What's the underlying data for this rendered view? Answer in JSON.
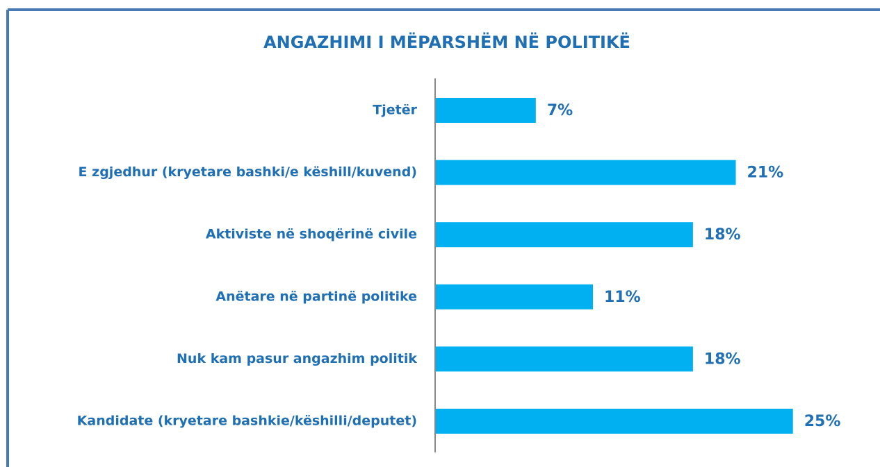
{
  "chart_data": {
    "type": "bar",
    "orientation": "horizontal",
    "title": "ANGAZHIMI I MËPARSHËM NË POLITIKË",
    "categories": [
      "Tjetër",
      "E zgjedhur (kryetare bashki/e këshill/kuvend)",
      "Aktiviste në shoqërinë civile",
      "Anëtare në partinë politike",
      "Nuk kam pasur angazhim politik",
      "Kandidate (kryetare bashkie/këshilli/deputet)"
    ],
    "values": [
      7,
      21,
      18,
      11,
      18,
      25
    ],
    "value_labels": [
      "7%",
      "21%",
      "18%",
      "11%",
      "18%",
      "25%"
    ],
    "color": "#00b0f0"
  }
}
